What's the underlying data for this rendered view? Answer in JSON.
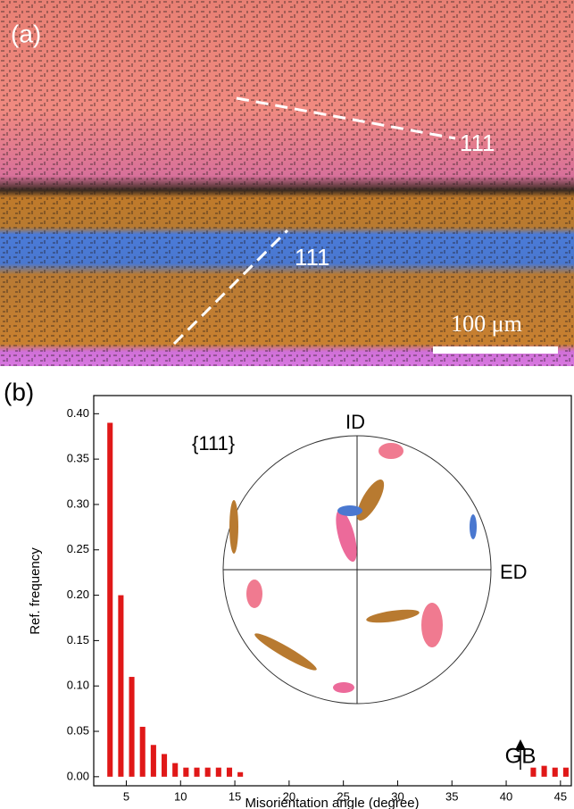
{
  "micrograph": {
    "label": "(a)",
    "annotations": [
      "111",
      "111"
    ],
    "scale_bar": "100 μm"
  },
  "pole_figure": {
    "title": "{111}",
    "labels": [
      "ID",
      "ED"
    ]
  },
  "chart_data": {
    "type": "bar",
    "panel_label": "(b)",
    "x_label": "Misorientation angle (degree)",
    "y_label": "Ref. frequency",
    "annotation": "GB",
    "x": [
      3.5,
      4.5,
      5.5,
      6.5,
      7.5,
      8.5,
      9.5,
      10.5,
      11.5,
      12.5,
      13.5,
      14.5,
      15.5,
      42.5,
      43.5,
      44.5,
      45.5
    ],
    "values": [
      0.39,
      0.2,
      0.11,
      0.055,
      0.035,
      0.025,
      0.015,
      0.01,
      0.01,
      0.01,
      0.01,
      0.01,
      0.005,
      0.01,
      0.012,
      0.01,
      0.01
    ],
    "color": "#e01818",
    "xlim": [
      2,
      46
    ],
    "ylim": [
      -0.01,
      0.42
    ],
    "xticks": [
      5,
      10,
      15,
      20,
      25,
      30,
      35,
      40,
      45
    ],
    "yticks": [
      {
        "value": 0,
        "label": "0.00"
      },
      {
        "value": 0.05,
        "label": "0.05"
      },
      {
        "value": 0.1,
        "label": "0.10"
      },
      {
        "value": 0.15,
        "label": "0.15"
      },
      {
        "value": 0.2,
        "label": "0.20"
      },
      {
        "value": 0.25,
        "label": "0.25"
      },
      {
        "value": 0.3,
        "label": "0.30"
      },
      {
        "value": 0.35,
        "label": "0.35"
      },
      {
        "value": 0.4,
        "label": "0.40"
      }
    ]
  }
}
